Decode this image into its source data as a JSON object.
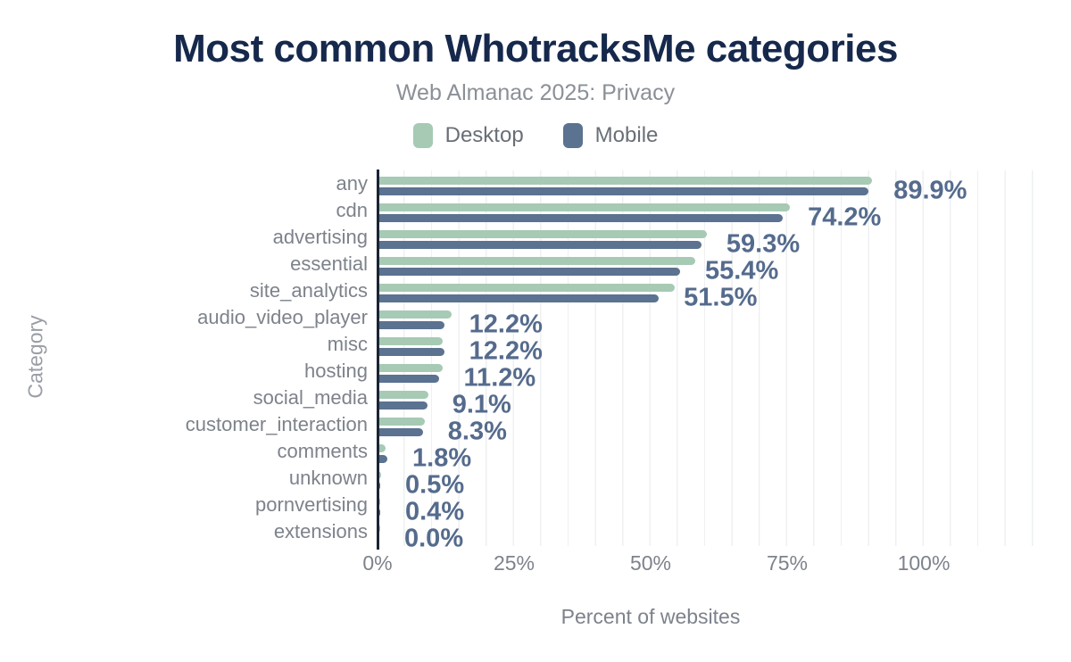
{
  "header": {
    "title": "Most common WhotracksMe categories",
    "subtitle": "Web Almanac 2025: Privacy"
  },
  "colors": {
    "title": "#16294c",
    "desktop_bar": "#a6cab4",
    "mobile_bar": "#5b7290",
    "value_label": "#556b8d",
    "axis_line": "#1a2433",
    "gridline": "#eef0f2",
    "muted_text": "#7d828b"
  },
  "chart_data": {
    "type": "bar",
    "orientation": "horizontal",
    "title": "Most common WhotracksMe categories",
    "subtitle": "Web Almanac 2025: Privacy",
    "xlabel": "Percent of websites",
    "ylabel": "Category",
    "legend_position": "top",
    "grid": "vertical-minor",
    "grid_step_percent": 5,
    "xlim": [
      0,
      123
    ],
    "xticks": [
      0,
      25,
      50,
      75,
      100
    ],
    "xtick_labels": [
      "0%",
      "25%",
      "50%",
      "75%",
      "100%"
    ],
    "categories": [
      "any",
      "cdn",
      "advertising",
      "essential",
      "site_analytics",
      "audio_video_player",
      "misc",
      "hosting",
      "social_media",
      "customer_interaction",
      "comments",
      "unknown",
      "pornvertising",
      "extensions"
    ],
    "series": [
      {
        "name": "Desktop",
        "color": "#a6cab4",
        "values": [
          90.5,
          75.5,
          60.3,
          58.2,
          54.4,
          13.5,
          11.9,
          12.0,
          9.3,
          8.7,
          1.4,
          0.6,
          0.3,
          0.2
        ]
      },
      {
        "name": "Mobile",
        "color": "#5b7290",
        "values": [
          89.9,
          74.2,
          59.3,
          55.4,
          51.5,
          12.2,
          12.2,
          11.2,
          9.1,
          8.3,
          1.8,
          0.5,
          0.4,
          0.0
        ]
      }
    ],
    "value_labels": [
      "89.9%",
      "74.2%",
      "59.3%",
      "55.4%",
      "51.5%",
      "12.2%",
      "12.2%",
      "11.2%",
      "9.1%",
      "8.3%",
      "1.8%",
      "0.5%",
      "0.4%",
      "0.0%"
    ],
    "value_labels_series": "Mobile"
  }
}
